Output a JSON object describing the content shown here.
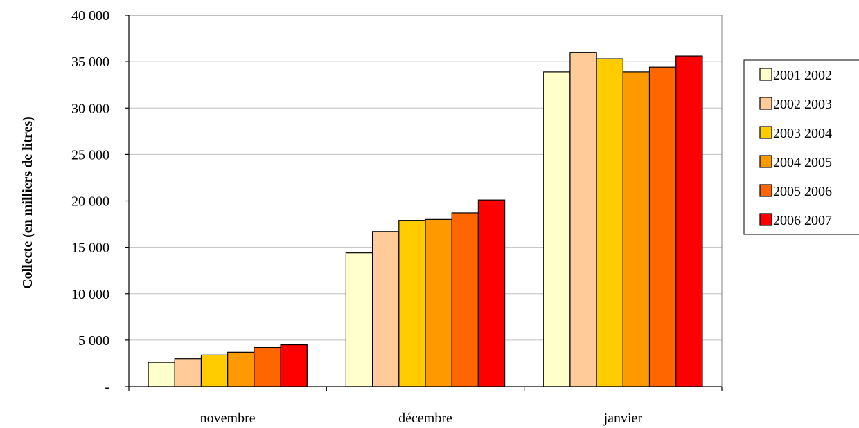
{
  "chart_data": {
    "type": "bar",
    "title": "",
    "xlabel": "",
    "ylabel": "Collecte (en milliers de litres)",
    "categories": [
      "novembre",
      "décembre",
      "janvier"
    ],
    "ylim": [
      0,
      40000
    ],
    "yticks": [
      0,
      5000,
      10000,
      15000,
      20000,
      25000,
      30000,
      35000,
      40000
    ],
    "ytick_labels": [
      "-",
      "5 000",
      "10 000",
      "15 000",
      "20 000",
      "25 000",
      "30 000",
      "35 000",
      "40 000"
    ],
    "grid": true,
    "legend_position": "right",
    "series": [
      {
        "name": "2001 2002",
        "color": "#FFFFCC",
        "values": [
          2600,
          14400,
          33900
        ]
      },
      {
        "name": "2002 2003",
        "color": "#FFCC99",
        "values": [
          3000,
          16700,
          36000
        ]
      },
      {
        "name": "2003 2004",
        "color": "#FFCC00",
        "values": [
          3400,
          17900,
          35300
        ]
      },
      {
        "name": "2004 2005",
        "color": "#FF9900",
        "values": [
          3700,
          18000,
          33900
        ]
      },
      {
        "name": "2005 2006",
        "color": "#FF6600",
        "values": [
          4200,
          18700,
          34400
        ]
      },
      {
        "name": "2006 2007",
        "color": "#FF0000",
        "values": [
          4500,
          20100,
          35600
        ]
      }
    ]
  }
}
